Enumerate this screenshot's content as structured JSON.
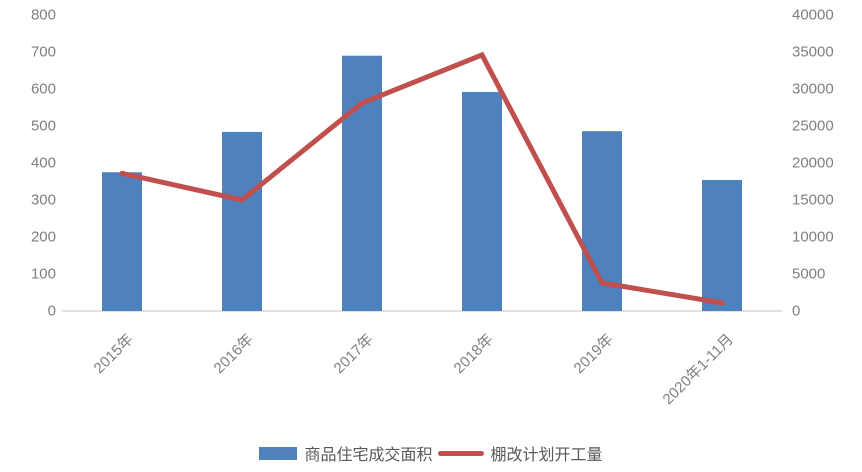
{
  "chart_data": {
    "type": "bar",
    "subtype": "combo-bar-line",
    "title": "",
    "xlabel": "",
    "ylabel": "",
    "grid": false,
    "legend_position": "bottom",
    "categories": [
      "2015年",
      "2016年",
      "2017年",
      "2018年",
      "2019年",
      "2020年1-11月"
    ],
    "series": [
      {
        "name": "商品住宅成交面积",
        "type": "bar",
        "axis": "left",
        "color": "#4F81BD",
        "values": [
          375,
          484,
          690,
          592,
          486,
          354
        ]
      },
      {
        "name": "棚改计划开工量",
        "type": "line",
        "axis": "right",
        "color": "#C0504D",
        "values": [
          18600,
          15000,
          28100,
          34600,
          3800,
          1100
        ]
      }
    ],
    "left_axis": {
      "min": 0,
      "max": 800,
      "step": 100,
      "tick_labels": [
        "0",
        "100",
        "200",
        "300",
        "400",
        "500",
        "600",
        "700",
        "800"
      ]
    },
    "right_axis": {
      "min": 0,
      "max": 40000,
      "step": 5000,
      "tick_labels": [
        "0",
        "5000",
        "10000",
        "15000",
        "20000",
        "25000",
        "30000",
        "35000",
        "40000"
      ]
    }
  },
  "colors": {
    "bar": "#4F81BD",
    "line": "#C0504D",
    "axis_text": "#808080",
    "axis_line": "#D9D9D9",
    "legend_text": "#595959",
    "background": "#FFFFFF"
  }
}
